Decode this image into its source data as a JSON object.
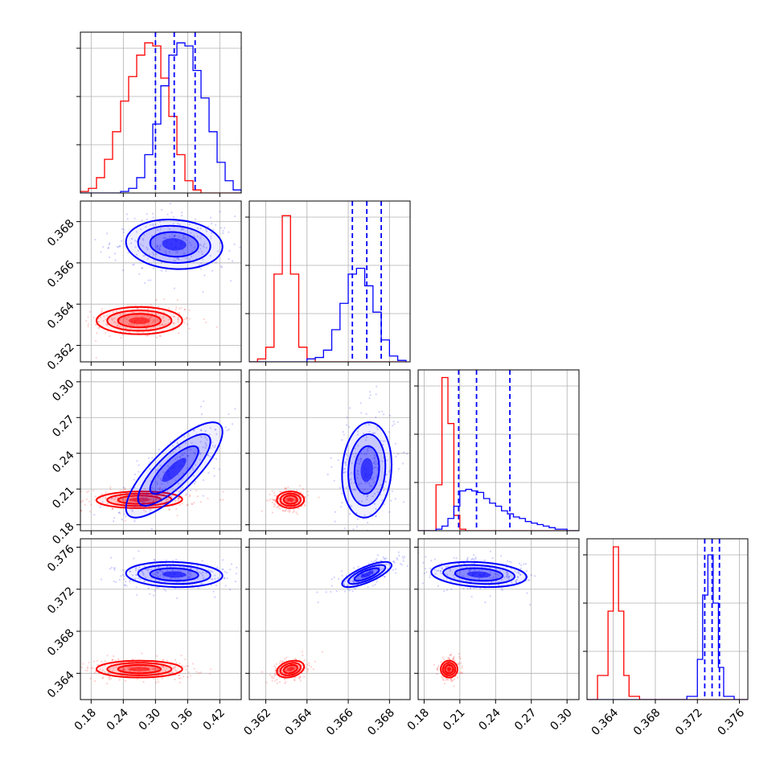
{
  "chart_data": {
    "type": "corner",
    "series": [
      {
        "name": "",
        "color": "#ff0000"
      },
      {
        "name": "",
        "color": "#0000ff"
      }
    ],
    "parameters": [
      {
        "range": [
          0.16,
          0.46
        ],
        "ticks": [
          "0.18",
          "0.24",
          "0.30",
          "0.36",
          "0.42"
        ],
        "ticks_y": []
      },
      {
        "range": [
          0.3612,
          0.369
        ],
        "ticks": [
          "0.362",
          "0.364",
          "0.366",
          "0.368"
        ]
      },
      {
        "range": [
          0.175,
          0.31
        ],
        "ticks": [
          "0.18",
          "0.21",
          "0.24",
          "0.27",
          "0.30"
        ]
      },
      {
        "range": [
          0.3615,
          0.3768
        ],
        "ticks": [
          "0.364",
          "0.368",
          "0.372",
          "0.376"
        ]
      }
    ],
    "diagonal_quantiles_blue": [
      [
        0.3,
        0.335,
        0.374
      ],
      [
        0.3662,
        0.3669,
        0.3676
      ],
      [
        0.209,
        0.224,
        0.252
      ],
      [
        0.3727,
        0.3734,
        0.3741
      ]
    ],
    "histograms": [
      {
        "edges": [
          0.16,
          0.175,
          0.19,
          0.205,
          0.22,
          0.235,
          0.25,
          0.265,
          0.28,
          0.295,
          0.31,
          0.325,
          0.34,
          0.355,
          0.37,
          0.385,
          0.4,
          0.415,
          0.43,
          0.445,
          0.46
        ],
        "red": [
          1,
          3,
          10,
          22,
          40,
          60,
          76,
          90,
          98,
          96,
          75,
          50,
          25,
          8,
          2,
          0,
          0,
          0,
          0,
          0
        ],
        "blue": [
          0,
          0,
          0,
          0,
          0,
          1,
          3,
          10,
          25,
          45,
          70,
          90,
          98,
          96,
          80,
          62,
          40,
          20,
          8,
          2
        ],
        "ymax": 105
      },
      {
        "edges": [
          0.3612,
          0.3616,
          0.362,
          0.3624,
          0.3628,
          0.3632,
          0.3636,
          0.364,
          0.3644,
          0.3648,
          0.3652,
          0.3656,
          0.366,
          0.3664,
          0.3668,
          0.3672,
          0.3676,
          0.368,
          0.3684,
          0.3688
        ],
        "red": [
          0,
          2,
          10,
          60,
          100,
          60,
          10,
          2,
          0,
          0,
          0,
          0,
          0,
          0,
          0,
          0,
          0,
          0,
          0
        ],
        "blue": [
          0,
          0,
          0,
          0,
          0,
          0,
          0,
          2,
          3,
          8,
          22,
          40,
          60,
          64,
          52,
          34,
          15,
          4,
          1
        ],
        "ymax": 110
      },
      {
        "edges": [
          0.175,
          0.18,
          0.185,
          0.19,
          0.195,
          0.2,
          0.205,
          0.21,
          0.215,
          0.22,
          0.225,
          0.23,
          0.235,
          0.24,
          0.245,
          0.25,
          0.255,
          0.26,
          0.265,
          0.27,
          0.275,
          0.28,
          0.285,
          0.29,
          0.295,
          0.3,
          0.305,
          0.31
        ],
        "red": [
          0,
          0,
          0,
          30,
          100,
          70,
          10,
          1,
          0,
          0,
          0,
          0,
          0,
          0,
          0,
          0,
          0,
          0,
          0,
          0,
          0,
          0,
          0,
          0,
          0,
          0,
          0
        ],
        "blue": [
          0,
          0,
          0,
          1,
          3,
          8,
          16,
          26,
          27,
          26,
          25,
          21,
          18,
          16,
          13,
          11,
          9,
          8,
          6,
          5,
          4,
          3,
          2,
          1,
          1,
          0,
          0
        ],
        "ymax": 105
      },
      {
        "edges": [
          0.3615,
          0.3625,
          0.3635,
          0.364,
          0.3645,
          0.365,
          0.3655,
          0.3665,
          0.368,
          0.3695,
          0.371,
          0.372,
          0.3725,
          0.373,
          0.3735,
          0.374,
          0.3745,
          0.3755,
          0.3768
        ],
        "red": [
          0,
          15,
          55,
          95,
          55,
          15,
          2,
          0,
          0,
          0,
          0,
          0,
          0,
          0,
          0,
          0,
          0,
          0
        ],
        "blue": [
          0,
          0,
          0,
          0,
          0,
          0,
          0,
          0,
          0,
          0,
          2,
          25,
          65,
          90,
          60,
          20,
          2,
          0
        ],
        "ymax": 100
      }
    ],
    "clouds": {
      "red": [
        {
          "mean": [
            0.27,
            0.3632,
            0.201,
            0.3644
          ],
          "sd": [
            0.04,
            0.00033,
            0.0035,
            0.0004
          ],
          "corr": {
            "0_2": 0.05,
            "0_3": 0.0,
            "1_2": 0.0,
            "1_3": 0.3,
            "0_1": 0.0,
            "2_3": 0.0
          }
        }
      ],
      "blue": [
        {
          "mean": [
            0.335,
            0.3669,
            0.226,
            0.3734
          ],
          "sd": [
            0.045,
            0.0006,
            0.02,
            0.0006
          ],
          "corr": {
            "0_2": 0.8,
            "0_3": -0.1,
            "1_2": 0.1,
            "1_3": 0.75,
            "0_1": -0.1,
            "2_3": -0.2
          }
        }
      ]
    }
  }
}
